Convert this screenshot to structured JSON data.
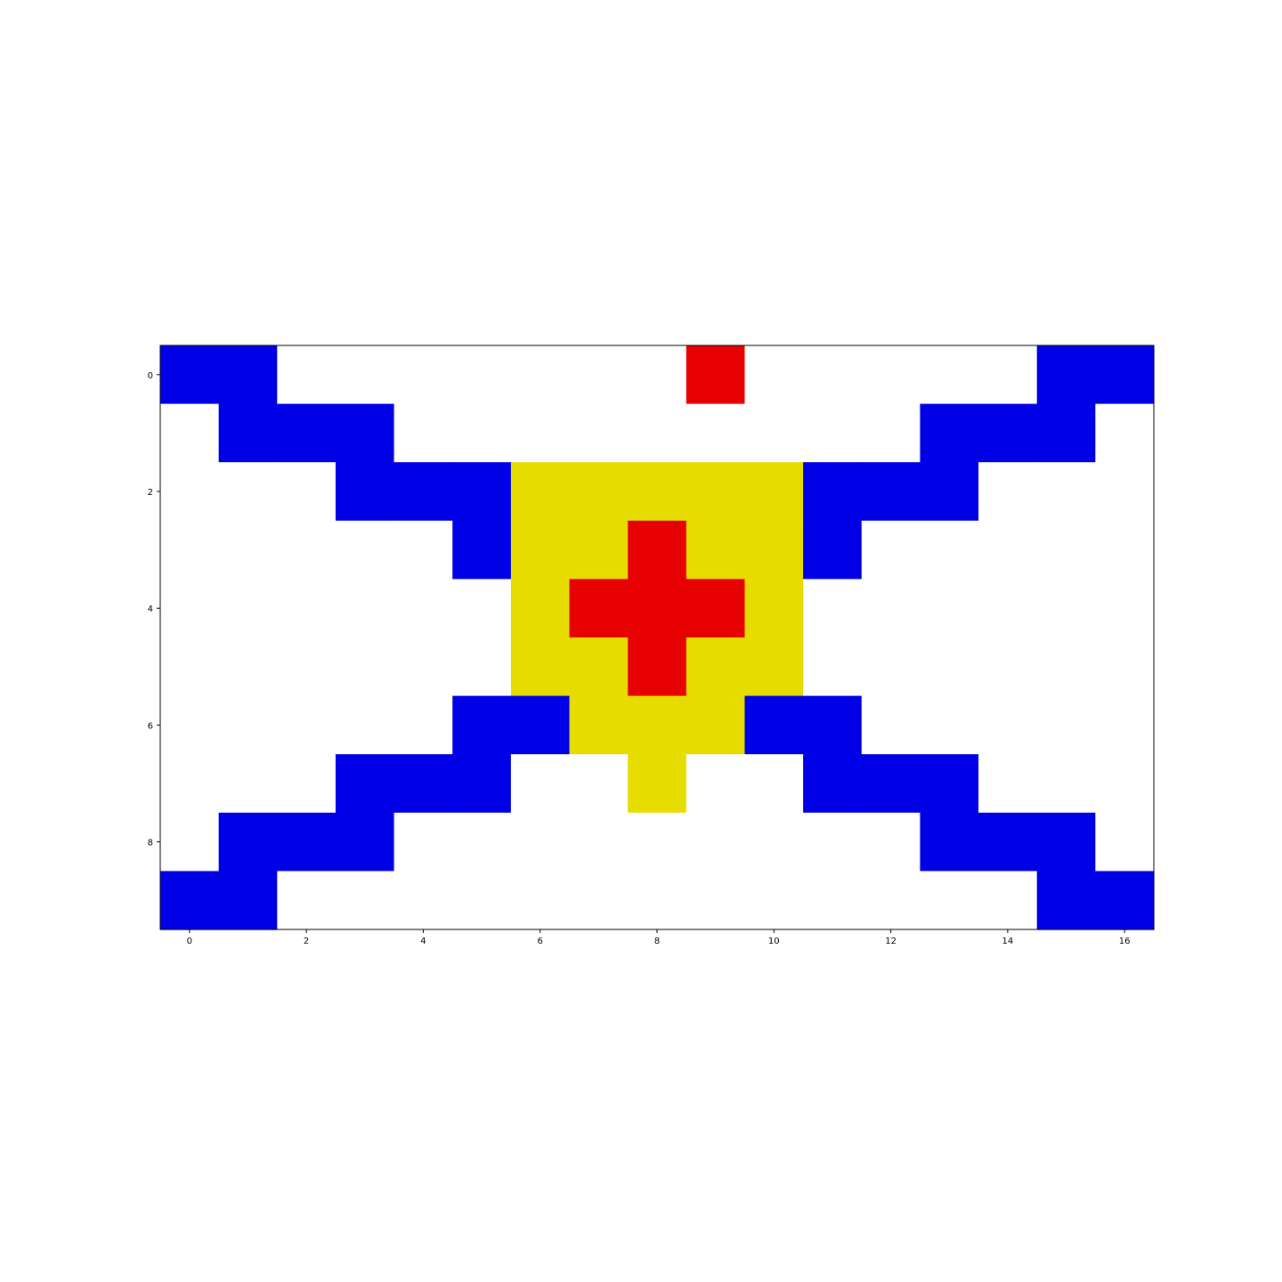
{
  "chart_data": {
    "type": "heatmap",
    "title": "",
    "xlabel": "",
    "ylabel": "",
    "n_rows": 10,
    "n_cols": 17,
    "x_ticks": [
      0,
      2,
      4,
      6,
      8,
      10,
      12,
      14,
      16
    ],
    "y_ticks": [
      0,
      2,
      4,
      6,
      8
    ],
    "xlim": [
      -0.5,
      16.5
    ],
    "ylim": [
      9.5,
      -0.5
    ],
    "grid": false,
    "legend": "none",
    "colors": {
      "0": "#ffffff",
      "1": "#0000e6",
      "2": "#e60000",
      "3": "#e6dc00"
    },
    "grid_values": [
      [
        1,
        1,
        0,
        0,
        0,
        0,
        0,
        0,
        0,
        2,
        0,
        0,
        0,
        0,
        0,
        1,
        1
      ],
      [
        0,
        1,
        1,
        1,
        0,
        0,
        0,
        0,
        0,
        0,
        0,
        0,
        0,
        1,
        1,
        1,
        0
      ],
      [
        0,
        0,
        0,
        1,
        1,
        1,
        3,
        3,
        3,
        3,
        3,
        1,
        1,
        1,
        0,
        0,
        0
      ],
      [
        0,
        0,
        0,
        0,
        0,
        1,
        3,
        3,
        2,
        3,
        3,
        1,
        0,
        0,
        0,
        0,
        0
      ],
      [
        0,
        0,
        0,
        0,
        0,
        0,
        3,
        2,
        2,
        2,
        3,
        0,
        0,
        0,
        0,
        0,
        0
      ],
      [
        0,
        0,
        0,
        0,
        0,
        0,
        3,
        3,
        2,
        3,
        3,
        0,
        0,
        0,
        0,
        0,
        0
      ],
      [
        0,
        0,
        0,
        0,
        0,
        1,
        1,
        3,
        3,
        3,
        1,
        1,
        0,
        0,
        0,
        0,
        0
      ],
      [
        0,
        0,
        0,
        1,
        1,
        1,
        0,
        0,
        3,
        0,
        0,
        1,
        1,
        1,
        0,
        0,
        0
      ],
      [
        0,
        1,
        1,
        1,
        0,
        0,
        0,
        0,
        0,
        0,
        0,
        0,
        0,
        1,
        1,
        1,
        0
      ],
      [
        1,
        1,
        0,
        0,
        0,
        0,
        0,
        0,
        0,
        0,
        0,
        0,
        0,
        0,
        0,
        1,
        1
      ]
    ]
  }
}
